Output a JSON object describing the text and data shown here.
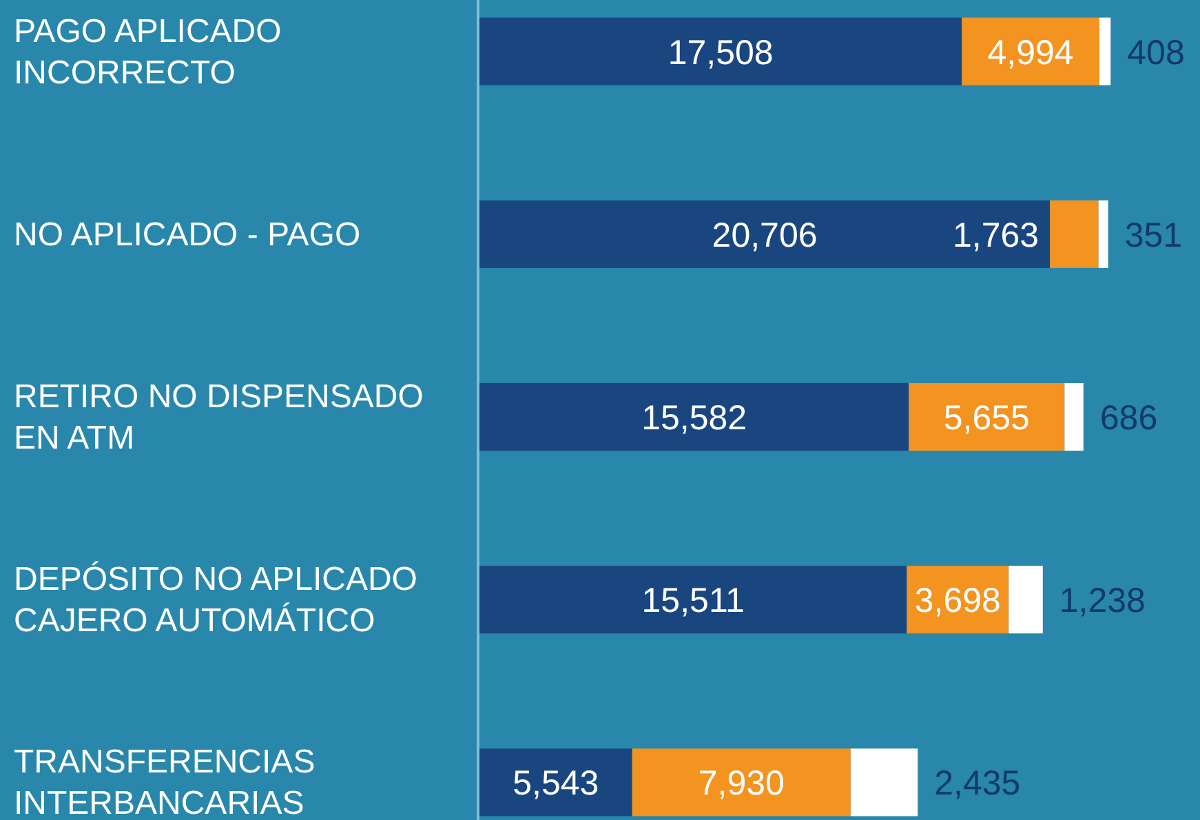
{
  "chart_data": {
    "type": "bar",
    "orientation": "horizontal",
    "stacked": true,
    "tick_labels": "y",
    "categories": [
      "PAGO APLICADO INCORRECTO",
      "NO APLICADO - PAGO",
      "RETIRO NO DISPENSADO EN ATM",
      "DEPÓSITO NO APLICADO CAJERO AUTOMÁTICO",
      "TRANSFERENCIAS INTERBANCARIAS"
    ],
    "series": [
      {
        "color": "#1a4680",
        "values": [
          17508,
          20706,
          15582,
          15511,
          5543
        ],
        "value_labels": [
          "17,508",
          "20,706",
          "15,582",
          "15,511",
          "5,543"
        ]
      },
      {
        "color": "#f39320",
        "values": [
          4994,
          1763,
          5655,
          3698,
          7930
        ],
        "value_labels": [
          "4,994",
          "1,763",
          "5,655",
          "3,698",
          "7,930"
        ]
      },
      {
        "color": "#ffffff",
        "values": [
          408,
          351,
          686,
          1238,
          2435
        ],
        "value_labels": [
          "408",
          "351",
          "686",
          "1,238",
          "2,435"
        ]
      }
    ]
  }
}
